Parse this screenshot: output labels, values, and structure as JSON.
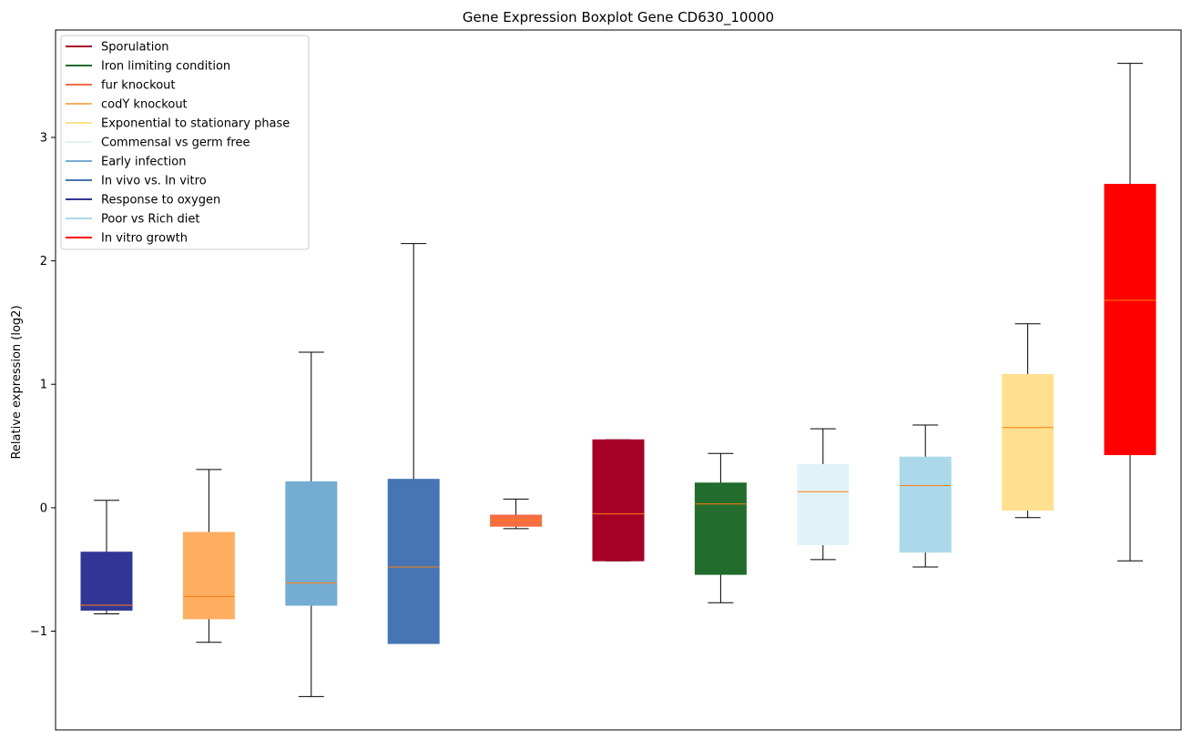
{
  "chart_data": {
    "type": "boxplot",
    "title": "Gene Expression Boxplot Gene CD630_10000",
    "xlabel": "",
    "ylabel": "Relative expression (log2)",
    "ylim": [
      -1.8,
      3.87
    ],
    "yticks": [
      -1,
      0,
      1,
      2,
      3
    ],
    "ytick_labels": [
      "−1",
      "0",
      "1",
      "2",
      "3"
    ],
    "legend_position": "top-left",
    "legend": [
      {
        "label": "Sporulation",
        "color": "#a50026"
      },
      {
        "label": "Iron limiting condition",
        "color": "#226c2e"
      },
      {
        "label": "fur knockout",
        "color": "#f46d43"
      },
      {
        "label": "codY knockout",
        "color": "#fdae61"
      },
      {
        "label": "Exponential to stationary phase",
        "color": "#fee090"
      },
      {
        "label": "Commensal vs germ free",
        "color": "#e0f3f8"
      },
      {
        "label": "Early infection",
        "color": "#74add1"
      },
      {
        "label": "In vivo vs. In vitro",
        "color": "#4575b4"
      },
      {
        "label": "Response to oxygen",
        "color": "#313695"
      },
      {
        "label": "Poor vs Rich diet",
        "color": "#abd9e9"
      },
      {
        "label": "In vitro growth",
        "color": "#ff0000"
      }
    ],
    "boxes": [
      {
        "name": "Response to oxygen",
        "color": "#313695",
        "whisker_low": -0.86,
        "q1": -0.83,
        "median": -0.79,
        "q3": -0.36,
        "whisker_high": 0.06
      },
      {
        "name": "codY knockout",
        "color": "#fdae61",
        "whisker_low": -1.09,
        "q1": -0.9,
        "median": -0.72,
        "q3": -0.2,
        "whisker_high": 0.31
      },
      {
        "name": "Early infection",
        "color": "#74add1",
        "whisker_low": -1.53,
        "q1": -0.79,
        "median": -0.61,
        "q3": 0.21,
        "whisker_high": 1.26
      },
      {
        "name": "In vivo vs. In vitro",
        "color": "#4575b4",
        "whisker_low": -1.1,
        "q1": -1.1,
        "median": -0.48,
        "q3": 0.23,
        "whisker_high": 2.14
      },
      {
        "name": "fur knockout",
        "color": "#f46d43",
        "whisker_low": -0.17,
        "q1": -0.15,
        "median": -0.1,
        "q3": -0.06,
        "whisker_high": 0.07
      },
      {
        "name": "Sporulation",
        "color": "#a50026",
        "whisker_low": -0.43,
        "q1": -0.43,
        "median": -0.05,
        "q3": 0.55,
        "whisker_high": 0.55
      },
      {
        "name": "Iron limiting condition",
        "color": "#226c2e",
        "whisker_low": -0.77,
        "q1": -0.54,
        "median": 0.03,
        "q3": 0.2,
        "whisker_high": 0.44
      },
      {
        "name": "Commensal vs germ free",
        "color": "#e0f3f8",
        "whisker_low": -0.42,
        "q1": -0.3,
        "median": 0.13,
        "q3": 0.35,
        "whisker_high": 0.64
      },
      {
        "name": "Poor vs Rich diet",
        "color": "#abd9e9",
        "whisker_low": -0.48,
        "q1": -0.36,
        "median": 0.18,
        "q3": 0.41,
        "whisker_high": 0.67
      },
      {
        "name": "Exponential to stationary phase",
        "color": "#fee090",
        "whisker_low": -0.08,
        "q1": -0.02,
        "median": 0.65,
        "q3": 1.08,
        "whisker_high": 1.49
      },
      {
        "name": "In vitro growth",
        "color": "#ff0000",
        "whisker_low": -0.43,
        "q1": 0.43,
        "median": 1.68,
        "q3": 2.62,
        "whisker_high": 3.6
      }
    ],
    "median_color": "#ff7f0e",
    "whisker_color": "#000000"
  }
}
